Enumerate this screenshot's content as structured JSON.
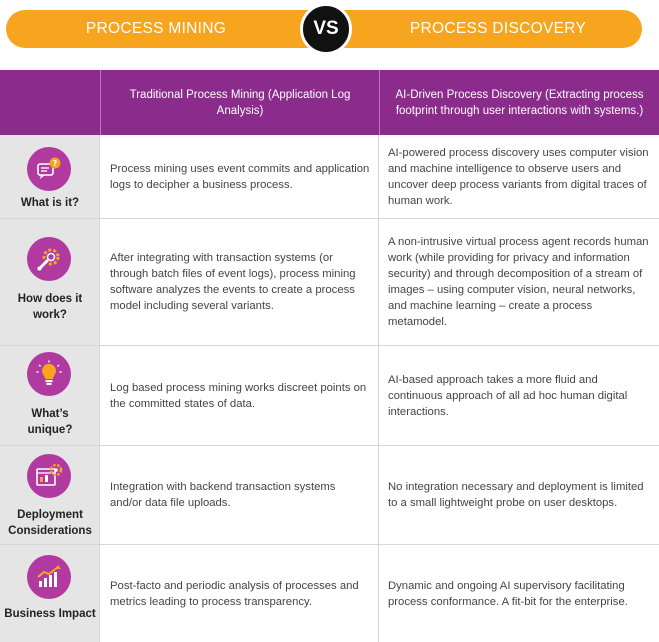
{
  "banner": {
    "left_title": "PROCESS MINING",
    "vs": "VS",
    "right_title": "PROCESS DISCOVERY"
  },
  "header": {
    "col1": "Traditional Process Mining (Application Log Analysis)",
    "col2": "AI-Driven Process Discovery (Extracting process footprint through user interactions with systems.)"
  },
  "rows": [
    {
      "label": "What is it?",
      "icon": "chat-bubble-question-icon",
      "traditional": "Process mining uses event commits and application logs to decipher a business process.",
      "ai_driven": "AI-powered process discovery uses computer vision and machine intelligence to observe users and uncover deep process variants from digital traces of human work."
    },
    {
      "label": "How does it work?",
      "icon": "gear-wrench-icon",
      "traditional": "After integrating with transaction systems (or through batch files of event logs), process mining software analyzes the events to create a process model including several variants.",
      "ai_driven": "A non-intrusive virtual process agent records human work (while providing for privacy and information security) and through decomposition of a stream of images – using computer vision, neural networks, and machine learning – create a process metamodel."
    },
    {
      "label": "What’s unique?",
      "icon": "lightbulb-icon",
      "traditional": "Log based process mining works discreet points on the committed states of data.",
      "ai_driven": "AI-based approach takes a more fluid and continuous approach of all ad hoc human digital interactions."
    },
    {
      "label": "Deployment Considerations",
      "icon": "dashboard-gear-icon",
      "traditional": "Integration with backend transaction systems and/or data file uploads.",
      "ai_driven": "No integration necessary and deployment is limited to a small lightweight probe on user desktops."
    },
    {
      "label": "Business Impact",
      "icon": "growth-chart-icon",
      "traditional": "Post-facto and periodic analysis of processes and metrics leading to process transparency.",
      "ai_driven": "Dynamic and ongoing AI supervisory facilitating process conformance. A fit-bit for the enterprise."
    }
  ]
}
